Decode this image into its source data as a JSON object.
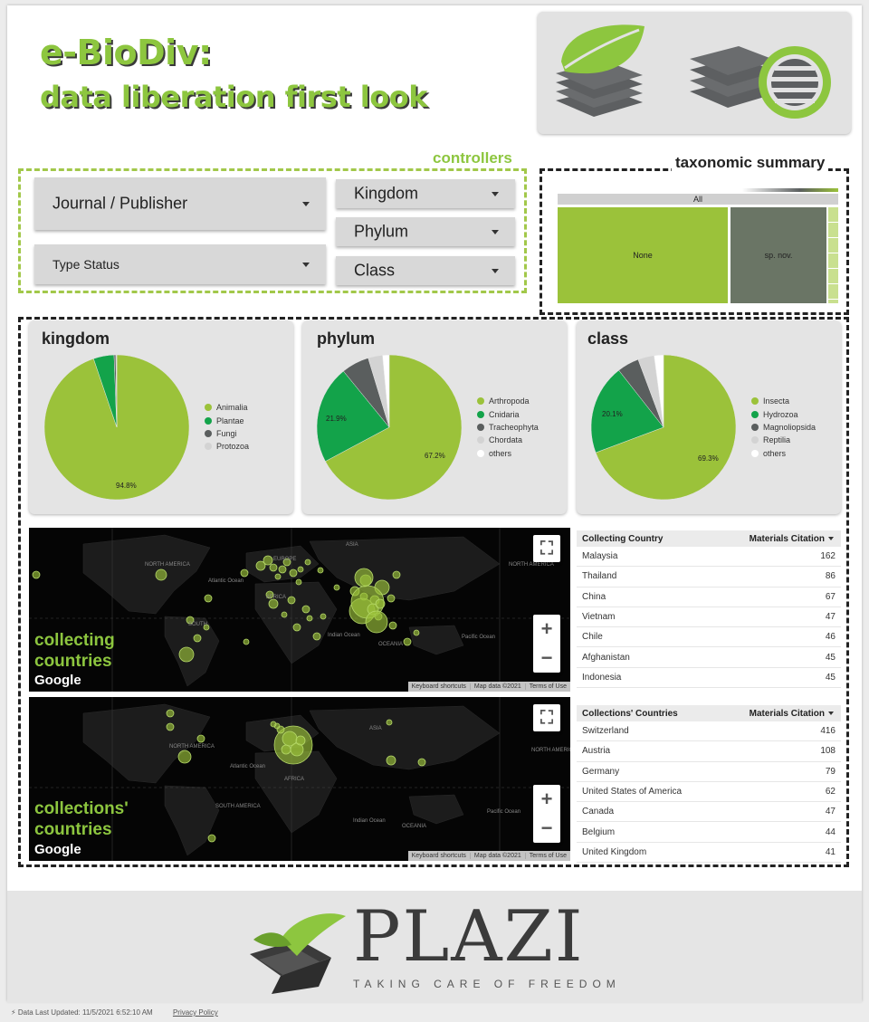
{
  "header": {
    "title_line1": "e-BioDiv:",
    "title_line2": "data liberation first look"
  },
  "controllers": {
    "label": "controllers",
    "journal_publisher": "Journal / Publisher",
    "type_status": "Type Status",
    "kingdom": "Kingdom",
    "phylum": "Phylum",
    "class": "Class"
  },
  "taxonomic_summary": {
    "label": "taxonomic summary",
    "all_label": "All",
    "cells": [
      "None",
      "sp. nov."
    ]
  },
  "charts": {
    "kingdom": {
      "title": "kingdom",
      "legend": [
        "Animalia",
        "Plantae",
        "Fungi",
        "Protozoa"
      ],
      "label": "94.8%"
    },
    "phylum": {
      "title": "phylum",
      "legend": [
        "Arthropoda",
        "Cnidaria",
        "Tracheophyta",
        "Chordata",
        "others"
      ],
      "label_main": "67.2%",
      "label_second": "21.9%"
    },
    "class": {
      "title": "class",
      "legend": [
        "Insecta",
        "Hydrozoa",
        "Magnoliopsida",
        "Reptilia",
        "others"
      ],
      "label_main": "69.3%",
      "label_second": "20.1%"
    }
  },
  "chart_data": [
    {
      "type": "pie",
      "title": "kingdom",
      "categories": [
        "Animalia",
        "Plantae",
        "Fungi",
        "Protozoa"
      ],
      "values": [
        94.8,
        4.6,
        0.4,
        0.2
      ],
      "colors": [
        "#9bc23a",
        "#13a34a",
        "#5a5e5e",
        "#d3d3d3"
      ]
    },
    {
      "type": "pie",
      "title": "phylum",
      "categories": [
        "Arthropoda",
        "Cnidaria",
        "Tracheophyta",
        "Chordata",
        "others"
      ],
      "values": [
        67.2,
        21.9,
        6.2,
        3.2,
        1.5
      ],
      "colors": [
        "#9bc23a",
        "#13a34a",
        "#5a5e5e",
        "#d3d3d3",
        "#ffffff"
      ]
    },
    {
      "type": "pie",
      "title": "class",
      "categories": [
        "Insecta",
        "Hydrozoa",
        "Magnoliopsida",
        "Reptilia",
        "others"
      ],
      "values": [
        69.3,
        20.1,
        4.9,
        3.6,
        2.1
      ],
      "colors": [
        "#9bc23a",
        "#13a34a",
        "#5a5e5e",
        "#d3d3d3",
        "#ffffff"
      ]
    }
  ],
  "maps": {
    "collecting": {
      "label_line1": "collecting",
      "label_line2": "countries",
      "google": "Google",
      "labels": [
        "ASIA",
        "NORTH AMERICA",
        "SOUTH AMERICA",
        "AFRICA",
        "EUROPE",
        "Atlantic Ocean",
        "Indian Ocean",
        "OCEANIA",
        "Pacific Ocean",
        "SOUTH"
      ]
    },
    "collections": {
      "label_line1": "collections'",
      "label_line2": "countries",
      "google": "Google",
      "labels": [
        "ASIA",
        "NORTH AMERICA",
        "SOUTH AMERICA",
        "AFRICA",
        "Atlantic Ocean",
        "Indian Ocean",
        "OCEANIA",
        "Pacific Ocean"
      ]
    },
    "attribution": {
      "shortcuts": "Keyboard shortcuts",
      "map_data": "Map data ©2021",
      "terms": "Terms of Use"
    },
    "zoom_in": "+",
    "zoom_out": "−"
  },
  "tables": {
    "collecting": {
      "col1": "Collecting Country",
      "col2": "Materials Citation",
      "rows": [
        [
          "Malaysia",
          "162"
        ],
        [
          "Thailand",
          "86"
        ],
        [
          "China",
          "67"
        ],
        [
          "Vietnam",
          "47"
        ],
        [
          "Chile",
          "46"
        ],
        [
          "Afghanistan",
          "45"
        ],
        [
          "Indonesia",
          "45"
        ]
      ]
    },
    "collections": {
      "col1": "Collections' Countries",
      "col2": "Materials Citation",
      "rows": [
        [
          "Switzerland",
          "416"
        ],
        [
          "Austria",
          "108"
        ],
        [
          "Germany",
          "79"
        ],
        [
          "United States of America",
          "62"
        ],
        [
          "Canada",
          "47"
        ],
        [
          "Belgium",
          "44"
        ],
        [
          "United Kingdom",
          "41"
        ]
      ]
    }
  },
  "footer": {
    "brand": "PLAZI",
    "tagline": "TAKING CARE OF FREEDOM",
    "last_updated": "Data Last Updated: 11/5/2021 6:52:10 AM",
    "privacy": "Privacy Policy"
  }
}
